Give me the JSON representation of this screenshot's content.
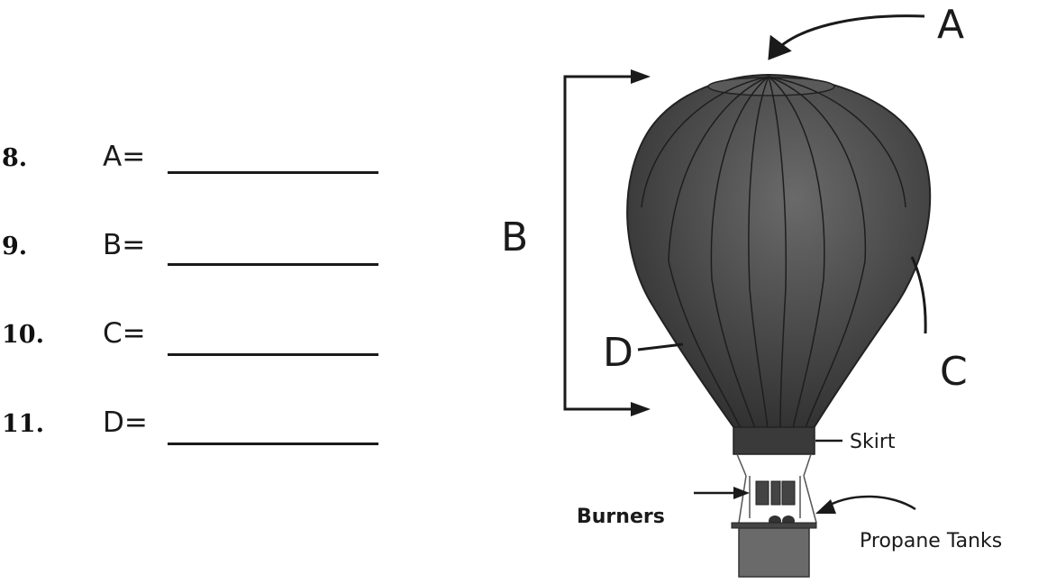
{
  "questions": [
    {
      "number": "8.",
      "label": "A="
    },
    {
      "number": "9.",
      "label": "B="
    },
    {
      "number": "10.",
      "label": "C="
    },
    {
      "number": "11.",
      "label": "D="
    }
  ],
  "diagram": {
    "letters": {
      "a": "A",
      "b": "B",
      "c": "C",
      "d": "D"
    },
    "parts": {
      "skirt": "Skirt",
      "burners": "Burners",
      "propane_tanks": "Propane Tanks"
    }
  },
  "colors": {
    "envelope": "#3e3e3e",
    "basket": "#6a6a6a",
    "ink": "#1a1a1a"
  }
}
